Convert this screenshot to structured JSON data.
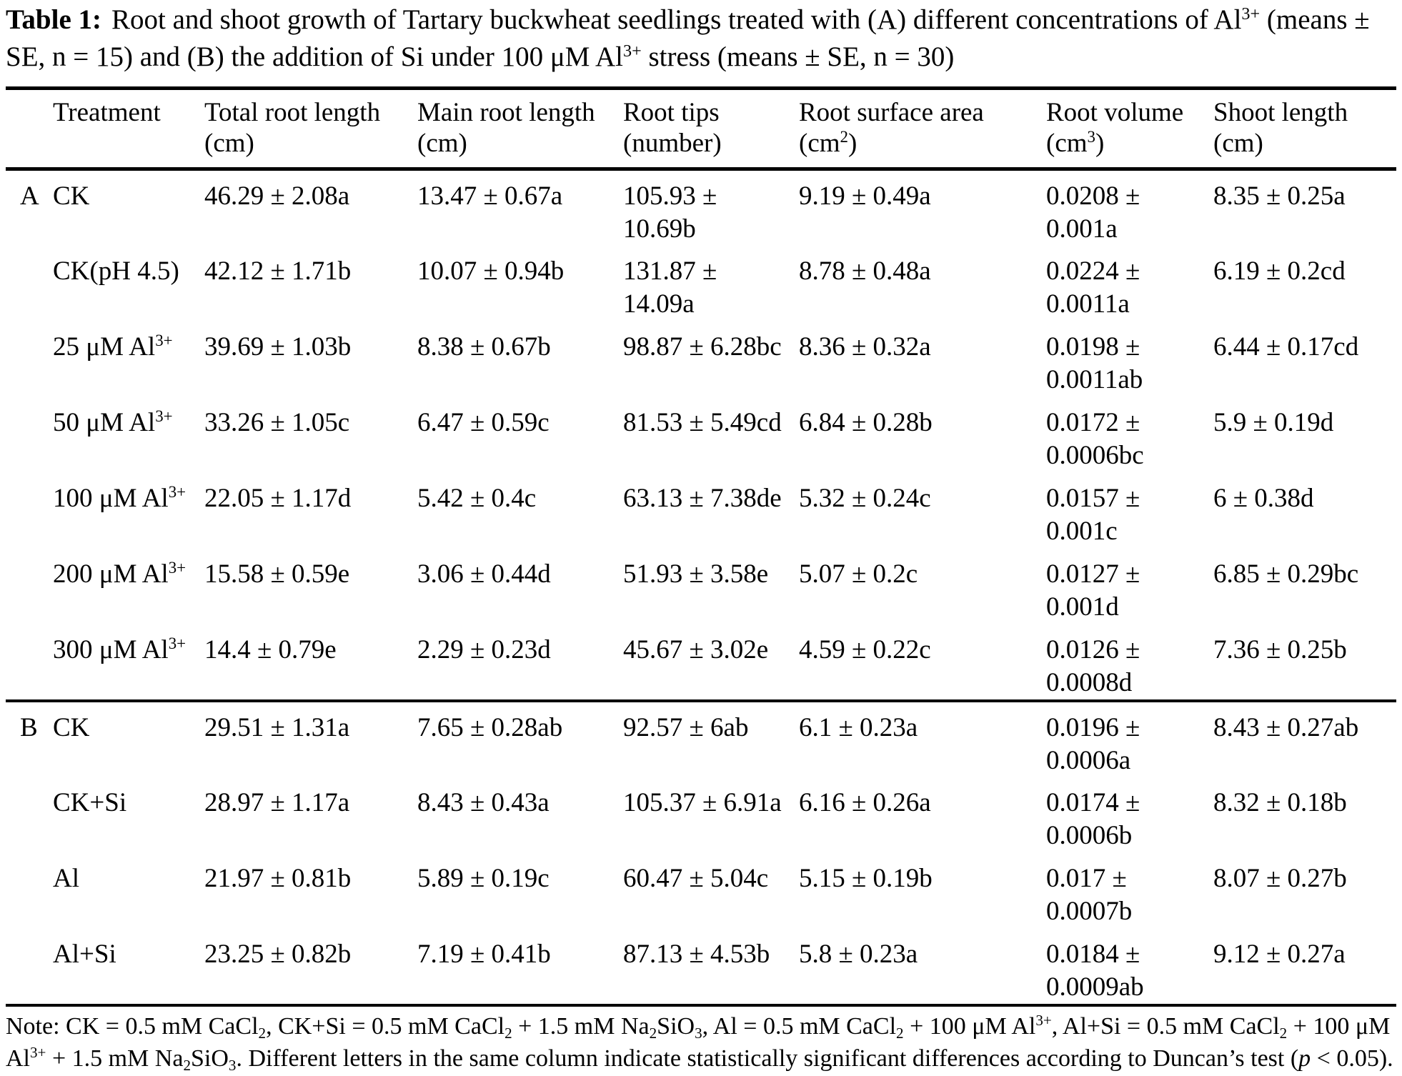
{
  "title": {
    "label": "Table 1:",
    "text": "Root and shoot growth of Tartary buckwheat seedlings treated with (A) different concentrations of Al^{3+} (means ± SE, n = 15) and (B) the addition of Si under 100 μM Al^{3+} stress (means ± SE, n = 30)"
  },
  "table": {
    "columns": [
      {
        "label": "Treatment",
        "unit": ""
      },
      {
        "label": "Total root length",
        "unit": "(cm)"
      },
      {
        "label": "Main root length",
        "unit": "(cm)"
      },
      {
        "label": "Root tips",
        "unit": "(number)"
      },
      {
        "label": "Root surface area",
        "unit": "(cm^{2})"
      },
      {
        "label": "Root volume",
        "unit": "(cm^{3})"
      },
      {
        "label": "Shoot length",
        "unit": "(cm)"
      }
    ],
    "rows": [
      {
        "group": "A",
        "treatment": "CK",
        "total_root_length": "46.29 ± 2.08a",
        "main_root_length": "13.47 ± 0.67a",
        "root_tips": "105.93 ± 10.69b",
        "root_surface_area": "9.19 ± 0.49a",
        "root_volume": "0.0208 ± 0.001a",
        "shoot_length": "8.35 ± 0.25a"
      },
      {
        "group": "",
        "treatment": "CK(pH 4.5)",
        "total_root_length": "42.12 ± 1.71b",
        "main_root_length": "10.07 ± 0.94b",
        "root_tips": "131.87 ± 14.09a",
        "root_surface_area": "8.78 ± 0.48a",
        "root_volume": "0.0224 ± 0.0011a",
        "shoot_length": "6.19 ± 0.2cd"
      },
      {
        "group": "",
        "treatment": "25 μM Al^{3+}",
        "total_root_length": "39.69 ± 1.03b",
        "main_root_length": "8.38 ± 0.67b",
        "root_tips": "98.87 ± 6.28bc",
        "root_surface_area": "8.36 ± 0.32a",
        "root_volume": "0.0198 ± 0.0011ab",
        "shoot_length": "6.44 ± 0.17cd"
      },
      {
        "group": "",
        "treatment": "50 μM Al^{3+}",
        "total_root_length": "33.26 ± 1.05c",
        "main_root_length": "6.47 ± 0.59c",
        "root_tips": "81.53 ± 5.49cd",
        "root_surface_area": "6.84 ± 0.28b",
        "root_volume": "0.0172 ± 0.0006bc",
        "shoot_length": "5.9 ± 0.19d"
      },
      {
        "group": "",
        "treatment": "100 μM Al^{3+}",
        "total_root_length": "22.05 ± 1.17d",
        "main_root_length": "5.42 ± 0.4c",
        "root_tips": "63.13 ± 7.38de",
        "root_surface_area": "5.32 ± 0.24c",
        "root_volume": "0.0157 ± 0.001c",
        "shoot_length": "6 ± 0.38d"
      },
      {
        "group": "",
        "treatment": "200 μM Al^{3+}",
        "total_root_length": "15.58 ± 0.59e",
        "main_root_length": "3.06 ± 0.44d",
        "root_tips": "51.93 ± 3.58e",
        "root_surface_area": "5.07 ± 0.2c",
        "root_volume": "0.0127 ± 0.001d",
        "shoot_length": "6.85 ± 0.29bc"
      },
      {
        "group": "",
        "treatment": "300 μM Al^{3+}",
        "total_root_length": "14.4 ± 0.79e",
        "main_root_length": "2.29 ± 0.23d",
        "root_tips": "45.67 ± 3.02e",
        "root_surface_area": "4.59 ± 0.22c",
        "root_volume": "0.0126 ± 0.0008d",
        "shoot_length": "7.36 ± 0.25b"
      },
      {
        "group": "B",
        "treatment": "CK",
        "total_root_length": "29.51 ± 1.31a",
        "main_root_length": "7.65 ± 0.28ab",
        "root_tips": "92.57 ± 6ab",
        "root_surface_area": "6.1 ± 0.23a",
        "root_volume": "0.0196 ± 0.0006a",
        "shoot_length": "8.43 ± 0.27ab"
      },
      {
        "group": "",
        "treatment": "CK+Si",
        "total_root_length": "28.97 ± 1.17a",
        "main_root_length": "8.43 ± 0.43a",
        "root_tips": "105.37 ± 6.91a",
        "root_surface_area": "6.16 ± 0.26a",
        "root_volume": "0.0174 ± 0.0006b",
        "shoot_length": "8.32 ± 0.18b"
      },
      {
        "group": "",
        "treatment": "Al",
        "total_root_length": "21.97 ± 0.81b",
        "main_root_length": "5.89 ± 0.19c",
        "root_tips": "60.47 ± 5.04c",
        "root_surface_area": "5.15 ± 0.19b",
        "root_volume": "0.017 ± 0.0007b",
        "shoot_length": "8.07 ± 0.27b"
      },
      {
        "group": "",
        "treatment": "Al+Si",
        "total_root_length": "23.25 ± 0.82b",
        "main_root_length": "7.19 ± 0.41b",
        "root_tips": "87.13 ± 4.53b",
        "root_surface_area": "5.8 ± 0.23a",
        "root_volume": "0.0184 ± 0.0009ab",
        "shoot_length": "9.12 ± 0.27a"
      }
    ]
  },
  "note": "Note: CK = 0.5 mM CaCl_{2}, CK+Si = 0.5 mM CaCl_{2} + 1.5 mM Na_{2}SiO_{3}, Al = 0.5 mM CaCl_{2} + 100 μM Al^{3+}, Al+Si = 0.5 mM CaCl_{2} + 100 μM Al^{3+} + 1.5 mM Na_{2}SiO_{3}. Different letters in the same column indicate statistically significant differences according to Duncan’s test (*{p} < 0.05)."
}
